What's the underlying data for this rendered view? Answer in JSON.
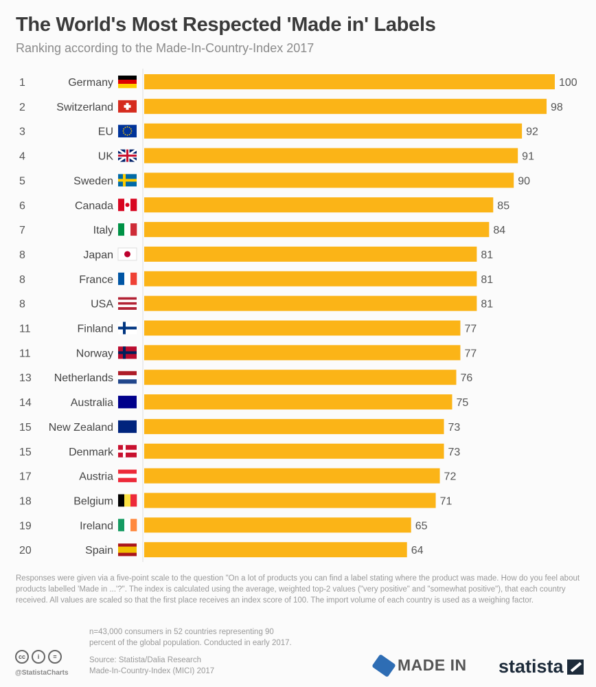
{
  "chart_data": {
    "type": "bar",
    "orientation": "horizontal",
    "title": "The World's Most Respected 'Made in' Labels",
    "subtitle": "Ranking according to the Made-In-Country-Index 2017",
    "xlim": [
      0,
      100
    ],
    "grid": false,
    "bar_color": "#FBB417",
    "rows": [
      {
        "rank": "1",
        "country": "Germany",
        "value": 100,
        "flag": {
          "dir": "h",
          "colors": [
            "#000000",
            "#dd0000",
            "#ffce00"
          ]
        }
      },
      {
        "rank": "2",
        "country": "Switzerland",
        "value": 98,
        "flag": {
          "dir": "cross",
          "colors": [
            "#d52b1e",
            "#ffffff"
          ]
        }
      },
      {
        "rank": "3",
        "country": "EU",
        "value": 92,
        "flag": {
          "dir": "h",
          "colors": [
            "#003399"
          ]
        }
      },
      {
        "rank": "4",
        "country": "UK",
        "value": 91,
        "flag": {
          "dir": "uk",
          "colors": [
            "#012169",
            "#ffffff",
            "#c8102e"
          ]
        }
      },
      {
        "rank": "5",
        "country": "Sweden",
        "value": 90,
        "flag": {
          "dir": "nordic",
          "colors": [
            "#006aa7",
            "#fecc00"
          ]
        }
      },
      {
        "rank": "6",
        "country": "Canada",
        "value": 85,
        "flag": {
          "dir": "v",
          "colors": [
            "#d80621",
            "#ffffff",
            "#d80621"
          ]
        }
      },
      {
        "rank": "7",
        "country": "Italy",
        "value": 84,
        "flag": {
          "dir": "v",
          "colors": [
            "#009246",
            "#ffffff",
            "#ce2b37"
          ]
        }
      },
      {
        "rank": "8",
        "country": "Japan",
        "value": 81,
        "flag": {
          "dir": "dot",
          "colors": [
            "#ffffff",
            "#bc002d"
          ]
        }
      },
      {
        "rank": "8",
        "country": "France",
        "value": 81,
        "flag": {
          "dir": "v",
          "colors": [
            "#0055a4",
            "#ffffff",
            "#ef4135"
          ]
        }
      },
      {
        "rank": "8",
        "country": "USA",
        "value": 81,
        "flag": {
          "dir": "h",
          "colors": [
            "#b22234",
            "#ffffff",
            "#b22234",
            "#ffffff",
            "#b22234"
          ]
        }
      },
      {
        "rank": "11",
        "country": "Finland",
        "value": 77,
        "flag": {
          "dir": "nordic",
          "colors": [
            "#ffffff",
            "#003580"
          ]
        }
      },
      {
        "rank": "11",
        "country": "Norway",
        "value": 77,
        "flag": {
          "dir": "nordic",
          "colors": [
            "#ba0c2f",
            "#00205b"
          ]
        }
      },
      {
        "rank": "13",
        "country": "Netherlands",
        "value": 76,
        "flag": {
          "dir": "h",
          "colors": [
            "#ae1c28",
            "#ffffff",
            "#21468b"
          ]
        }
      },
      {
        "rank": "14",
        "country": "Australia",
        "value": 75,
        "flag": {
          "dir": "h",
          "colors": [
            "#00008b"
          ]
        }
      },
      {
        "rank": "15",
        "country": "New Zealand",
        "value": 73,
        "flag": {
          "dir": "h",
          "colors": [
            "#00247d"
          ]
        }
      },
      {
        "rank": "15",
        "country": "Denmark",
        "value": 73,
        "flag": {
          "dir": "nordic",
          "colors": [
            "#c8102e",
            "#ffffff"
          ]
        }
      },
      {
        "rank": "17",
        "country": "Austria",
        "value": 72,
        "flag": {
          "dir": "h",
          "colors": [
            "#ed2939",
            "#ffffff",
            "#ed2939"
          ]
        }
      },
      {
        "rank": "18",
        "country": "Belgium",
        "value": 71,
        "flag": {
          "dir": "v",
          "colors": [
            "#000000",
            "#fae042",
            "#ed2939"
          ]
        }
      },
      {
        "rank": "19",
        "country": "Ireland",
        "value": 65,
        "flag": {
          "dir": "v",
          "colors": [
            "#169b62",
            "#ffffff",
            "#ff883e"
          ]
        }
      },
      {
        "rank": "20",
        "country": "Spain",
        "value": 64,
        "flag": {
          "dir": "h",
          "colors": [
            "#aa151b",
            "#f1bf00",
            "#f1bf00",
            "#aa151b"
          ]
        }
      }
    ]
  },
  "footer": {
    "note": "Responses were given via a five-point scale to the question \"On a lot of products you can find a label stating where the product was made. How do you feel about products labelled 'Made in ...'?\". The index is calculated using the average, weighted top-2 values (\"very positive\" and \"somewhat positive\"), that each country received. All values are scaled so that the first place receives an index score of 100. The import volume of each country is used as a weighing factor.",
    "sample_line1": "n=43,000 consumers in 52 countries representing 90",
    "sample_line2": "percent of the global population. Conducted in early 2017.",
    "source_line1": "Source: Statista/Dalia Research",
    "source_line2": "Made-In-Country-Index (MICI) 2017",
    "handle": "@StatistaCharts",
    "madein_logo": "MADE IN",
    "statista_logo": "statista"
  }
}
